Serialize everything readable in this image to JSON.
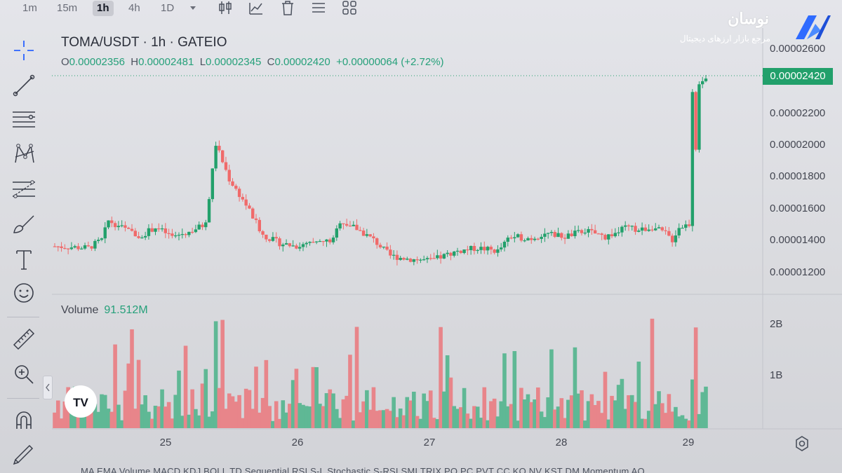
{
  "toolbar": {
    "timeframes": [
      {
        "label": "1m",
        "active": false
      },
      {
        "label": "15m",
        "active": false
      },
      {
        "label": "1h",
        "active": true
      },
      {
        "label": "4h",
        "active": false
      },
      {
        "label": "1D",
        "active": false
      }
    ],
    "icons": [
      "chevron-down-icon",
      "candles-icon",
      "indicators-icon",
      "trash-icon",
      "list-icon",
      "grid-icon"
    ]
  },
  "left_tools": [
    "crosshair-icon",
    "trendline-icon",
    "horizontal-lines-icon",
    "pattern-icon",
    "fib-icon",
    "brush-icon",
    "text-icon",
    "emoji-icon",
    "ruler-icon",
    "zoom-icon",
    "magnet-icon",
    "pencil-lock-icon"
  ],
  "chart": {
    "title": "TOMA/USDT · 1h · GATEIO",
    "ohlc": {
      "o_key": "O",
      "o": "0.00002356",
      "h_key": "H",
      "h": "0.00002481",
      "l_key": "L",
      "l": "0.00002345",
      "c_key": "C",
      "c": "0.00002420",
      "change": "+0.00000064 (+2.72%)"
    },
    "price_tag": "0.00002420",
    "price_axis": [
      "0.00002600",
      "0.00002200",
      "0.00002000",
      "0.00001800",
      "0.00001600",
      "0.00001400",
      "0.00001200"
    ],
    "date_axis": [
      "25",
      "26",
      "27",
      "28",
      "29"
    ],
    "volume_label": "Volume",
    "volume_value": "91.512M",
    "volume_axis": [
      "2B",
      "1B"
    ],
    "colors": {
      "up": "#22a06b",
      "down": "#f06a6a",
      "up_vol": "#5fb895",
      "down_vol": "#e8858a"
    }
  },
  "indicators_bar": "MA EMA Volume MACD KDJ BOLL TD Sequential RSI S-L Stochastic S-RSI SMI TRIX PO PC PVT CC KO NV KST DM Momentum AO",
  "brand": {
    "name": "نوسان",
    "tagline": "مرجع بازار ارزهای دیجیتال"
  },
  "tv_logo_text": "TV"
}
